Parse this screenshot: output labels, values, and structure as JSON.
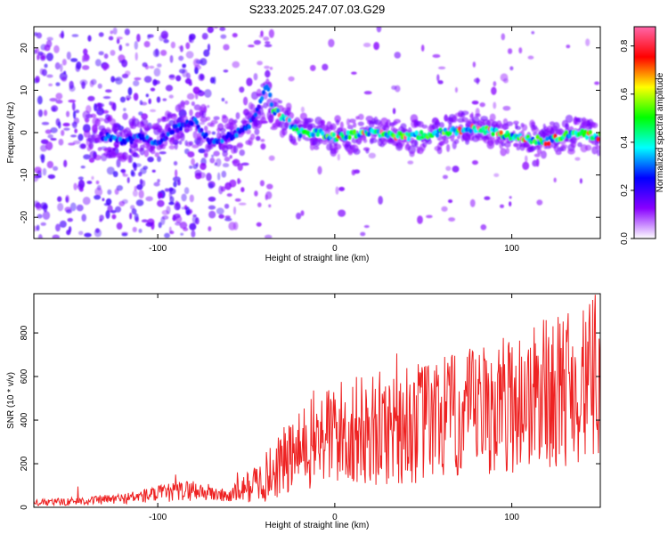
{
  "title": "S233.2025.247.07.03.G29",
  "chart_data": [
    {
      "type": "heatmap",
      "xlabel": "Height of straight line (km)",
      "ylabel": "Frequency (Hz)",
      "xlim": [
        -170,
        150
      ],
      "ylim": [
        -25,
        25
      ],
      "xticks": [
        -100,
        0,
        100
      ],
      "xtick_labels": [
        "-100",
        "0",
        "100"
      ],
      "yticks": [
        -20,
        -10,
        0,
        10,
        20
      ],
      "ytick_labels": [
        "-20",
        "-10",
        "0",
        "10",
        "20"
      ],
      "grid": false,
      "colorbar": {
        "label": "Normalized spectral amplitude",
        "range": [
          0.0,
          0.88
        ],
        "ticks": [
          0.0,
          0.2,
          0.4,
          0.6,
          0.8
        ],
        "tick_labels": [
          "0.0",
          "0.2",
          "0.4",
          "0.6",
          "0.8"
        ],
        "colormap": "rainbow",
        "stops": [
          "#ffffff",
          "#8800ff",
          "#0000ff",
          "#00ffff",
          "#00ff00",
          "#ffff00",
          "#ff0000",
          "#ff66aa"
        ]
      },
      "ridge": {
        "description": "dominant frequency trace",
        "x": [
          -130,
          -120,
          -110,
          -100,
          -90,
          -80,
          -70,
          -60,
          -50,
          -45,
          -40,
          -38,
          -35,
          -30,
          -20,
          -10,
          0,
          20,
          40,
          60,
          80,
          100,
          120,
          135,
          150
        ],
        "y": [
          -1,
          -2,
          -1,
          -2,
          1,
          3,
          -2,
          -1,
          1,
          4,
          9,
          12,
          5,
          4,
          0,
          0,
          -1,
          0,
          -1,
          0,
          1,
          -1,
          -2,
          0,
          -1
        ],
        "peak_amplitude": 0.88
      }
    },
    {
      "type": "line",
      "xlabel": "Height of straight line (km)",
      "ylabel": "SNR (10 * v/v)",
      "xlim": [
        -170,
        150
      ],
      "ylim": [
        0,
        980
      ],
      "xticks": [
        -100,
        0,
        100
      ],
      "xtick_labels": [
        "-100",
        "0",
        "100"
      ],
      "yticks": [
        0,
        200,
        400,
        600,
        800
      ],
      "ytick_labels": [
        "0",
        "200",
        "400",
        "600",
        "800"
      ],
      "grid": false,
      "series": [
        {
          "name": "SNR",
          "color": "#ee2222",
          "envelope_x": [
            -170,
            -140,
            -120,
            -100,
            -80,
            -60,
            -50,
            -40,
            -30,
            -20,
            -10,
            0,
            20,
            40,
            60,
            80,
            100,
            120,
            140,
            150
          ],
          "envelope_y": [
            20,
            30,
            40,
            60,
            80,
            50,
            90,
            130,
            200,
            250,
            320,
            340,
            350,
            380,
            400,
            430,
            480,
            520,
            560,
            600
          ],
          "noise_amplitude": [
            15,
            20,
            25,
            40,
            50,
            30,
            70,
            110,
            160,
            190,
            240,
            250,
            260,
            280,
            290,
            310,
            330,
            350,
            360,
            380
          ],
          "peaks": [
            {
              "x": -145,
              "y": 95
            },
            {
              "x": -90,
              "y": 150
            },
            {
              "x": -55,
              "y": 160
            },
            {
              "x": -32,
              "y": 320
            },
            {
              "x": 35,
              "y": 705
            },
            {
              "x": 62,
              "y": 690
            },
            {
              "x": 118,
              "y": 860
            },
            {
              "x": 132,
              "y": 890
            },
            {
              "x": 147,
              "y": 975
            }
          ],
          "n_points": 900
        }
      ]
    }
  ]
}
